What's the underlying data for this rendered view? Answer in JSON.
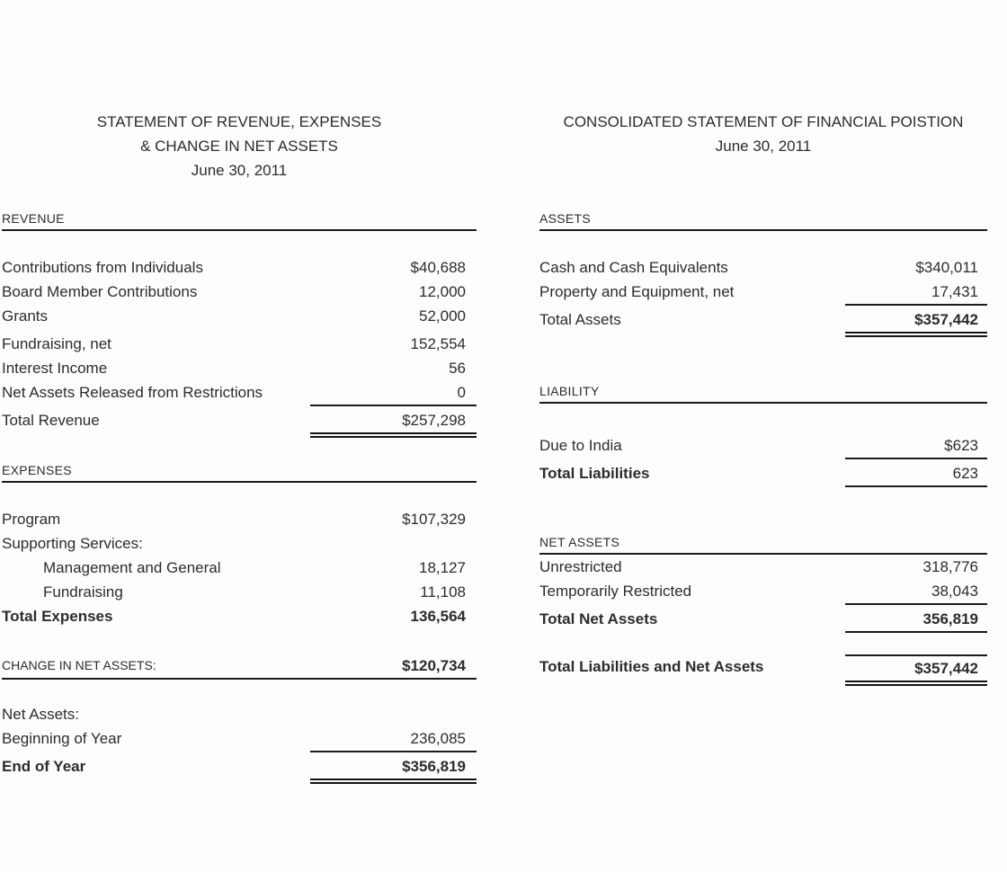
{
  "page": {
    "background": "#fdfdfd",
    "text_color": "#2e2c2a",
    "line_color": "#1b1b1b"
  },
  "left": {
    "title_lines": [
      "STATEMENT OF REVENUE, EXPENSES",
      "& CHANGE IN NET ASSETS",
      "June 30, 2011"
    ],
    "revenue": {
      "header": "REVENUE",
      "rows": [
        {
          "label": "Contributions from Individuals",
          "value": "$40,688"
        },
        {
          "label": "Board Member Contributions",
          "value": "12,000"
        },
        {
          "label": "Grants",
          "value": "52,000"
        },
        {
          "label": "Fundraising, net",
          "value": "152,554"
        },
        {
          "label": "Interest Income",
          "value": "56"
        },
        {
          "label": "Net Assets Released from Restrictions",
          "value": "0"
        },
        {
          "label": "Total Revenue",
          "value": "$257,298"
        }
      ]
    },
    "expenses": {
      "header": "EXPENSES",
      "rows": [
        {
          "label": "Program",
          "value": "$107,329"
        },
        {
          "label": "Supporting Services:",
          "value": ""
        },
        {
          "label": "Management and General",
          "value": "18,127"
        },
        {
          "label": "Fundraising",
          "value": "11,108"
        },
        {
          "label": "Total Expenses",
          "value": "136,564"
        }
      ]
    },
    "change_in_net_assets": {
      "label": "CHANGE IN NET ASSETS:",
      "value": "$120,734"
    },
    "net_assets": {
      "rows": [
        {
          "label": "Net Assets:",
          "value": ""
        },
        {
          "label": "Beginning of Year",
          "value": "236,085"
        },
        {
          "label": "End of Year",
          "value": "$356,819"
        }
      ]
    }
  },
  "right": {
    "title_lines": [
      "CONSOLIDATED STATEMENT OF FINANCIAL POISTION",
      "June 30, 2011"
    ],
    "assets": {
      "header": "ASSETS",
      "rows": [
        {
          "label": "Cash and Cash Equivalents",
          "value": "$340,011"
        },
        {
          "label": "Property and Equipment, net",
          "value": "17,431"
        },
        {
          "label": "Total Assets",
          "value": "$357,442"
        }
      ]
    },
    "liability": {
      "header": "LIABILITY",
      "rows": [
        {
          "label": "Due to India",
          "value": "$623"
        },
        {
          "label": "Total Liabilities",
          "value": "623"
        }
      ]
    },
    "net_assets": {
      "header": "NET ASSETS",
      "rows": [
        {
          "label": "Unrestricted",
          "value": "318,776"
        },
        {
          "label": "Temporarily Restricted",
          "value": "38,043"
        },
        {
          "label": "Total Net Assets",
          "value": "356,819"
        }
      ]
    },
    "total": {
      "label": "Total Liabilities and Net Assets",
      "value": "$357,442"
    }
  }
}
